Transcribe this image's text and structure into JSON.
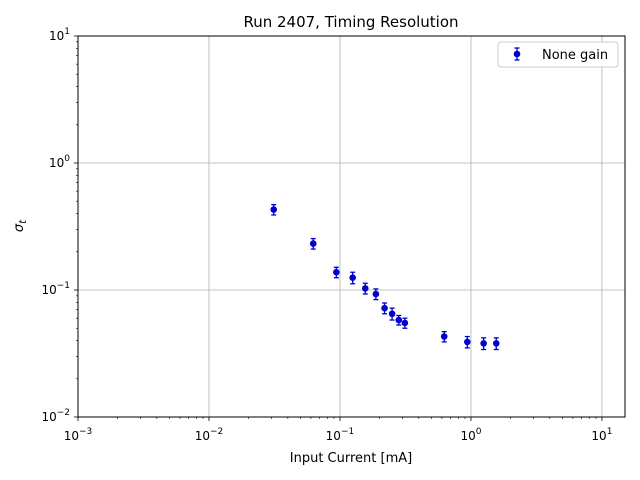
{
  "chart_data": {
    "type": "scatter",
    "title": "Run 2407, Timing Resolution",
    "xlabel": "Input Current [mA]",
    "ylabel": "σ",
    "ylabel_subscript": "t",
    "xscale": "log",
    "yscale": "log",
    "xlim": [
      0.001,
      15
    ],
    "ylim": [
      0.01,
      10
    ],
    "grid": true,
    "legend_position": "top-right",
    "x_ticks": [
      {
        "value": 0.001,
        "base": "10",
        "exp": "−3"
      },
      {
        "value": 0.01,
        "base": "10",
        "exp": "−2"
      },
      {
        "value": 0.1,
        "base": "10",
        "exp": "−1"
      },
      {
        "value": 1,
        "base": "10",
        "exp": "0"
      },
      {
        "value": 10,
        "base": "10",
        "exp": "1"
      }
    ],
    "y_ticks": [
      {
        "value": 0.01,
        "base": "10",
        "exp": "−2"
      },
      {
        "value": 0.1,
        "base": "10",
        "exp": "−1"
      },
      {
        "value": 1,
        "base": "10",
        "exp": "0"
      },
      {
        "value": 10,
        "base": "10",
        "exp": "1"
      }
    ],
    "series": [
      {
        "name": "None gain",
        "color": "#0000cc",
        "x": [
          0.0312,
          0.0625,
          0.0938,
          0.125,
          0.156,
          0.188,
          0.219,
          0.25,
          0.281,
          0.313,
          0.625,
          0.938,
          1.25,
          1.56
        ],
        "y": [
          0.43,
          0.232,
          0.138,
          0.125,
          0.103,
          0.093,
          0.072,
          0.065,
          0.058,
          0.055,
          0.043,
          0.039,
          0.038,
          0.038
        ],
        "yerr": [
          0.04,
          0.022,
          0.013,
          0.013,
          0.01,
          0.009,
          0.007,
          0.007,
          0.005,
          0.005,
          0.004,
          0.004,
          0.004,
          0.004
        ]
      }
    ]
  }
}
